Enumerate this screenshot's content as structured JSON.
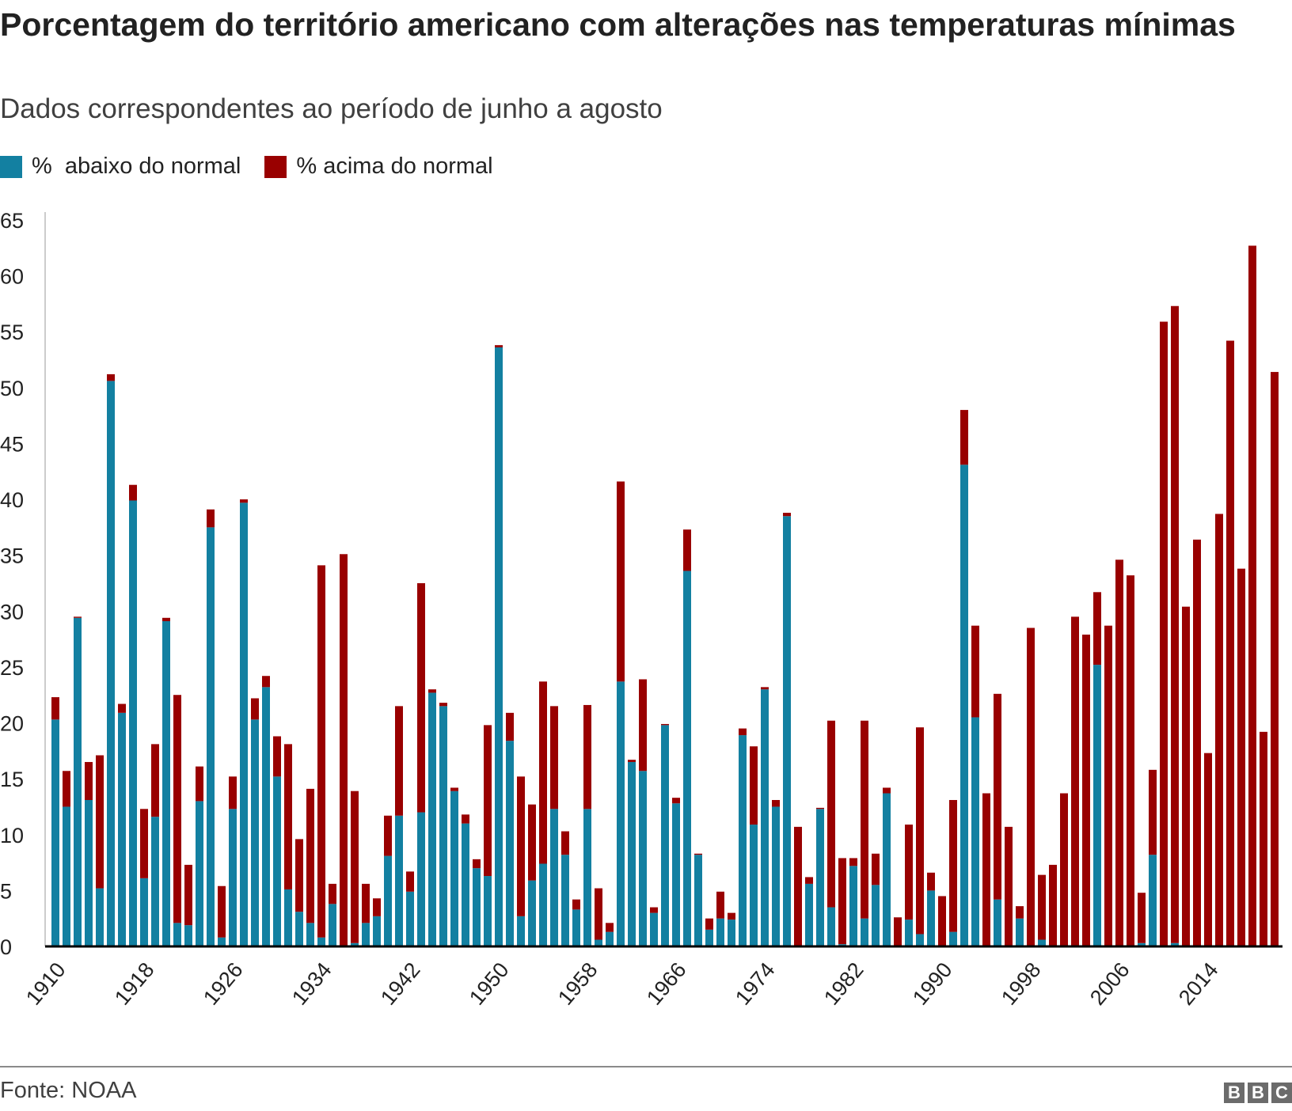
{
  "chart_data": {
    "type": "bar",
    "stacked": true,
    "title": "Porcentagem do território americano com alterações nas temperaturas mínimas",
    "subtitle": "Dados correspondentes ao período de junho a agosto",
    "ylim": [
      0,
      65
    ],
    "yticks": [
      0,
      5,
      10,
      15,
      20,
      25,
      30,
      35,
      40,
      45,
      50,
      55,
      60,
      65
    ],
    "xtick_labels": [
      "1910",
      "1918",
      "1926",
      "1934",
      "1942",
      "1950",
      "1958",
      "1966",
      "1974",
      "1982",
      "1990",
      "1998",
      "2006",
      "2014"
    ],
    "legend_position": "top-left",
    "grid": false,
    "categories": [
      1910,
      1911,
      1912,
      1913,
      1914,
      1915,
      1916,
      1917,
      1918,
      1919,
      1920,
      1921,
      1922,
      1923,
      1924,
      1925,
      1926,
      1927,
      1928,
      1929,
      1930,
      1931,
      1932,
      1933,
      1934,
      1935,
      1936,
      1937,
      1938,
      1939,
      1940,
      1941,
      1942,
      1943,
      1944,
      1945,
      1946,
      1947,
      1948,
      1949,
      1950,
      1951,
      1952,
      1953,
      1954,
      1955,
      1956,
      1957,
      1958,
      1959,
      1960,
      1961,
      1962,
      1963,
      1964,
      1965,
      1966,
      1967,
      1968,
      1969,
      1970,
      1971,
      1972,
      1973,
      1974,
      1975,
      1976,
      1977,
      1978,
      1979,
      1980,
      1981,
      1982,
      1983,
      1984,
      1985,
      1986,
      1987,
      1988,
      1989,
      1990,
      1991,
      1992,
      1993,
      1994,
      1995,
      1996,
      1997,
      1998,
      1999,
      2000,
      2001,
      2002,
      2003,
      2004,
      2005,
      2006,
      2007,
      2008,
      2009,
      2010,
      2011,
      2012,
      2013,
      2014,
      2015,
      2016,
      2017,
      2018,
      2019,
      2020
    ],
    "series": [
      {
        "name": "%  abaixo do normal",
        "color": "#1380A1",
        "values": [
          20.3,
          12.5,
          29.4,
          13.1,
          5.2,
          50.6,
          20.9,
          39.9,
          6.1,
          11.6,
          29.1,
          2.1,
          1.9,
          13.0,
          37.5,
          0.8,
          12.3,
          39.7,
          20.3,
          23.2,
          15.2,
          5.1,
          3.1,
          2.1,
          0.8,
          3.8,
          0.1,
          0.3,
          2.1,
          2.7,
          8.1,
          11.7,
          4.9,
          12.0,
          22.7,
          21.5,
          13.9,
          11.0,
          7.0,
          6.3,
          53.6,
          18.4,
          2.7,
          5.9,
          7.4,
          12.3,
          8.2,
          3.3,
          12.3,
          0.6,
          1.3,
          23.7,
          16.5,
          15.7,
          3.0,
          19.8,
          12.8,
          33.6,
          8.2,
          1.5,
          2.5,
          2.4,
          18.9,
          10.9,
          23.0,
          12.5,
          38.5,
          0,
          5.6,
          12.3,
          3.5,
          0.2,
          7.2,
          2.5,
          5.5,
          13.7,
          0.1,
          2.4,
          1.1,
          5.0,
          0,
          1.3,
          43.1,
          20.5,
          0,
          4.2,
          0,
          2.5,
          0,
          0.6,
          0,
          0,
          0,
          0,
          25.2,
          0,
          0,
          0.1,
          0.3,
          8.2,
          0,
          0.3,
          0,
          0,
          0,
          0,
          0,
          0,
          0,
          0,
          0
        ]
      },
      {
        "name": "% acima do normal",
        "color": "#990000",
        "values": [
          2.0,
          3.2,
          0.1,
          3.4,
          11.9,
          0.6,
          0.8,
          1.4,
          6.2,
          6.5,
          0.3,
          20.4,
          5.4,
          3.1,
          1.6,
          4.6,
          2.9,
          0.3,
          1.9,
          1.0,
          3.6,
          13.0,
          6.5,
          12.0,
          33.3,
          1.8,
          35.0,
          13.6,
          3.5,
          1.6,
          3.6,
          9.8,
          1.8,
          20.5,
          0.3,
          0.3,
          0.3,
          0.8,
          0.8,
          13.5,
          0.2,
          2.5,
          12.5,
          6.8,
          16.3,
          9.2,
          2.1,
          0.9,
          9.3,
          4.6,
          0.8,
          17.9,
          0.2,
          8.2,
          0.5,
          0.1,
          0.5,
          3.7,
          0.1,
          1.0,
          2.4,
          0.6,
          0.6,
          7.0,
          0.2,
          0.6,
          0.3,
          10.7,
          0.6,
          0.1,
          16.7,
          7.7,
          0.7,
          17.7,
          2.8,
          0.5,
          2.5,
          8.5,
          18.5,
          1.6,
          4.5,
          11.8,
          4.9,
          8.2,
          13.7,
          18.4,
          10.7,
          1.1,
          28.5,
          5.8,
          7.3,
          13.7,
          29.5,
          27.9,
          6.5,
          28.7,
          34.6,
          33.1,
          4.5,
          7.6,
          55.9,
          57.0,
          30.4,
          36.4,
          17.3,
          38.7,
          54.2,
          33.8,
          62.7,
          19.2,
          51.4
        ]
      }
    ]
  },
  "footer": {
    "source": "Fonte: NOAA",
    "logo": "BBC"
  }
}
